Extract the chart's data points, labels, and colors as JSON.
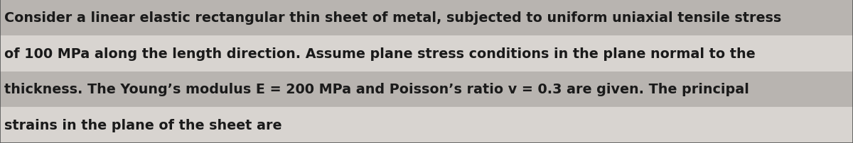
{
  "lines": [
    "Consider a linear elastic rectangular thin sheet of metal, subjected to uniform uniaxial tensile stress",
    "of 100 MPa along the length direction. Assume plane stress conditions in the plane normal to the",
    "thickness. The Young’s modulus E = 200 MPa and Poisson’s ratio v = 0.3 are given. The principal",
    "strains in the plane of the sheet are"
  ],
  "dark_lines": [
    0,
    2
  ],
  "light_lines": [
    1,
    3
  ],
  "bg_color": "#d4d0cc",
  "dark_band_color": "#b8b4b0",
  "light_band_color": "#d8d4d0",
  "text_color": "#1a1a1a",
  "font_size": 13.8,
  "border_color": "#555555"
}
